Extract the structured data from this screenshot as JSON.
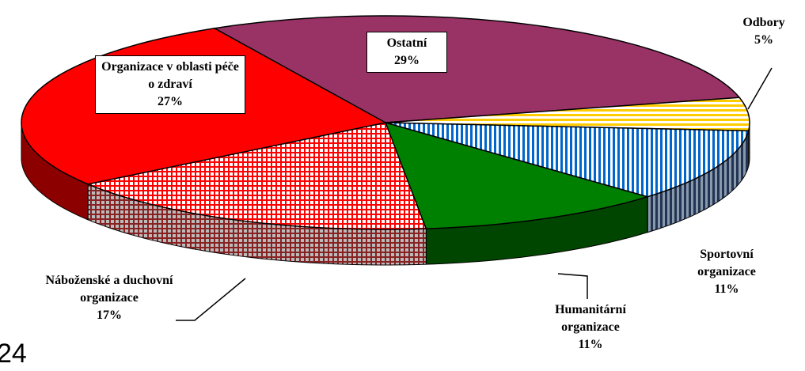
{
  "chart_data": {
    "type": "pie3d",
    "categories": [
      "Ostatní",
      "Odbory",
      "Sportovní organizace",
      "Humanitární organizace",
      "Náboženské a duchovní organizace",
      "Organizace v oblasti péče o zdraví"
    ],
    "values": [
      29,
      5,
      11,
      11,
      17,
      27
    ],
    "value_labels": [
      "29%",
      "5%",
      "11%",
      "11%",
      "17%",
      "27%"
    ],
    "colors": [
      "#993366",
      "#ffcc00",
      "#0066cc",
      "#008000",
      "#ff0000",
      "#ff0000"
    ],
    "patterns": [
      "solid",
      "horizontal-stripes",
      "vertical-stripes",
      "solid",
      "grid",
      "solid"
    ]
  },
  "page_number": "24"
}
